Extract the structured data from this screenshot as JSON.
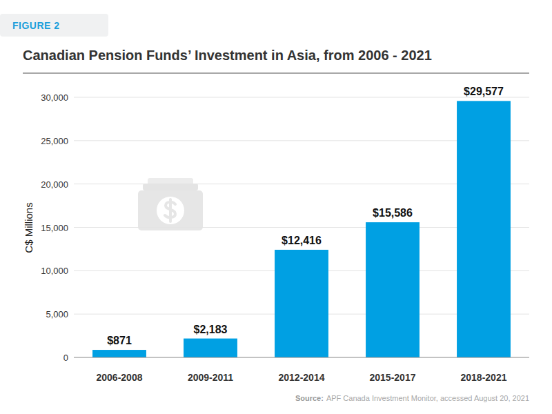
{
  "chart_data": {
    "type": "bar",
    "figure_label": "FIGURE 2",
    "title": "Canadian Pension Funds’ Investment in Asia, from 2006 - 2021",
    "y_label": "C$ Millions",
    "categories": [
      "2006-2008",
      "2009-2011",
      "2012-2014",
      "2015-2017",
      "2018-2021"
    ],
    "values": [
      871,
      2183,
      12416,
      15586,
      29577
    ],
    "value_labels": [
      "$871",
      "$2,183",
      "$12,416",
      "$15,586",
      "$29,577"
    ],
    "data_labels": true,
    "color": "#00a0e3",
    "ylim": [
      0,
      30000
    ],
    "yticks": [
      0,
      {
        "value": 5000,
        "label": "5,000"
      },
      {
        "value": 10000,
        "label": "10,000"
      },
      {
        "value": 15000,
        "label": "15,000"
      },
      {
        "value": 20000,
        "label": "20,000"
      },
      {
        "value": 25000,
        "label": "25,000"
      },
      {
        "value": 30000,
        "label": "30,000"
      }
    ],
    "grid": true,
    "source_label": "Source:",
    "source": "APF Canada Investment Monitor, accessed August 20, 2021"
  }
}
